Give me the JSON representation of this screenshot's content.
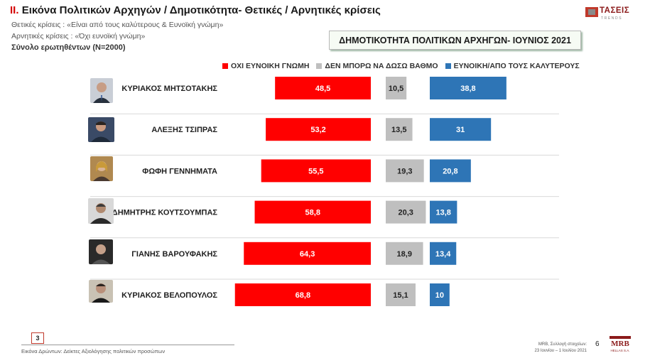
{
  "header": {
    "number": "II.",
    "title": "Εικόνα Πολιτικών Αρχηγών  / Δημοτικότητα- Θετικές / Αρνητικές κρίσεις",
    "positive_def": "Θετικές κρίσεις : «Είναι από τους καλύτερους &  Ευνοϊκή γνώμη»",
    "negative_def": "Αρνητικές κρίσεις : «Όχι ευνοϊκή γνώμη»",
    "sample": "Σύνολο ερωτηθέντων (N=2000)"
  },
  "logo": {
    "name": "ΤΑΣΕΙΣ",
    "tagline": "TRENDS"
  },
  "chart_data": {
    "type": "bar",
    "title": "ΔΗΜΟΤΙΚΟΤΗΤΑ ΠΟΛΙΤΙΚΩΝ ΑΡΧΗΓΩΝ- ΙΟΥΝΙΟΣ 2021",
    "categories": [
      "ΚΥΡΙΑΚΟΣ ΜΗΤΣΟΤΑΚΗΣ",
      "ΑΛΕΞΗΣ ΤΣΙΠΡΑΣ",
      "ΦΩΦΗ ΓΕΝΝΗΜΑΤΑ",
      "ΔΗΜΗΤΡΗΣ ΚΟΥΤΣΟΥΜΠΑΣ",
      "ΓΙΑΝΗΣ ΒΑΡΟΥΦΑΚΗΣ",
      "ΚΥΡΙΑΚΟΣ ΒΕΛΟΠΟΥΛΟΣ"
    ],
    "series": [
      {
        "name": "ΟΧΙ ΕΥΝΟΙΚΗ ΓΝΩΜΗ",
        "color": "#ff0000",
        "values": [
          48.5,
          53.2,
          55.5,
          58.8,
          64.3,
          68.8
        ],
        "labels": [
          "48,5",
          "53,2",
          "55,5",
          "58,8",
          "64,3",
          "68,8"
        ]
      },
      {
        "name": "ΔΕΝ ΜΠΟΡΩ ΝΑ ΔΩΣΩ ΒΑΘΜΟ",
        "color": "#bfbfbf",
        "values": [
          10.5,
          13.5,
          19.3,
          20.3,
          18.9,
          15.1
        ],
        "labels": [
          "10,5",
          "13,5",
          "19,3",
          "20,3",
          "18,9",
          "15,1"
        ]
      },
      {
        "name": "ΕΥΝΟΙΚΗ/ΑΠΟ ΤΟΥΣ ΚΑΛΥΤΕΡΟΥΣ",
        "color": "#2e75b6",
        "values": [
          38.8,
          31,
          20.8,
          13.8,
          13.4,
          10
        ],
        "labels": [
          "38,8",
          "31",
          "20,8",
          "13,8",
          "13,4",
          "10"
        ]
      }
    ],
    "grid": false,
    "legend_position": "top"
  },
  "footer": {
    "page_box": "3",
    "caption": "Εικόνα Δρώντων: Δείκτες Αξιολόγησης πολιτικών προσώπων",
    "mrb_line1": "MRB, Συλλογή στοιχείων:",
    "mrb_line2": "23 Ιουνίου –  1 Ιουλίου 2021",
    "page_number": "6",
    "mrb_logo": "MRB",
    "mrb_sub": "HELLAS S.A."
  }
}
